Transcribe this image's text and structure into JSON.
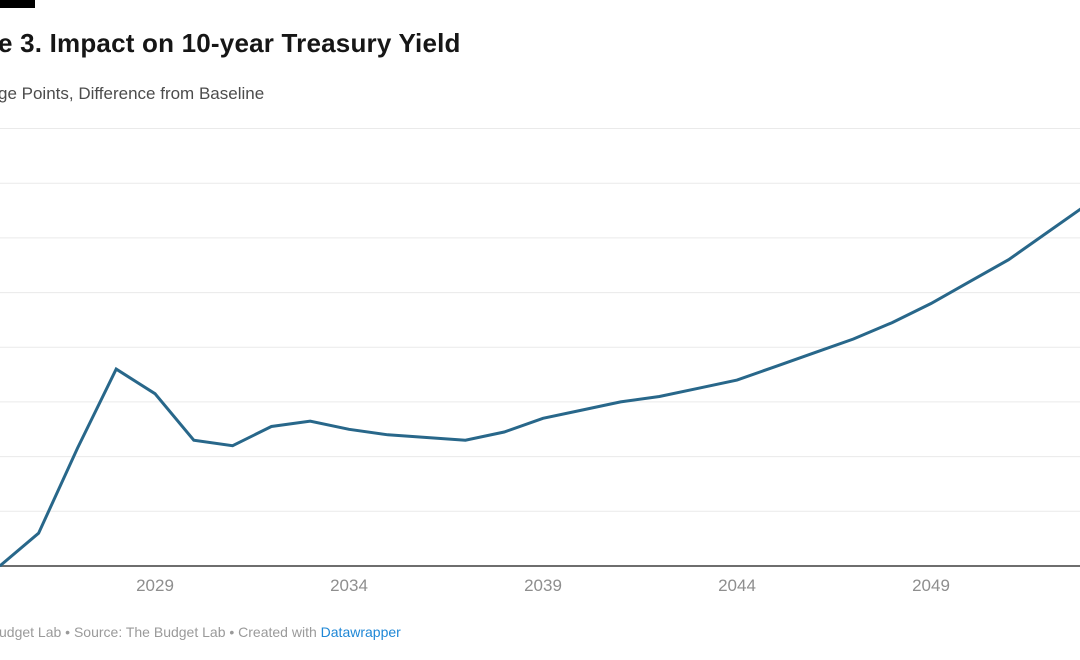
{
  "header": {
    "title": "e 3. Impact on 10-year Treasury Yield",
    "subtitle": "ge Points, Difference from Baseline"
  },
  "footer": {
    "prefix": "udget Lab • Source: The Budget Lab • Created with ",
    "link_label": "Datawrapper"
  },
  "colors": {
    "line": "#28678a",
    "grid": "#eaeaea",
    "axis": "#6e6e6e",
    "tick_label": "#8e8e8e",
    "footer_link": "#1e87d6"
  },
  "chart_data": {
    "type": "line",
    "title": "e 3. Impact on 10-year Treasury Yield",
    "subtitle": "ge Points, Difference from Baseline",
    "xlabel": "",
    "ylabel": "",
    "x": [
      2025,
      2026,
      2027,
      2028,
      2029,
      2030,
      2031,
      2032,
      2033,
      2034,
      2035,
      2036,
      2037,
      2038,
      2039,
      2040,
      2041,
      2042,
      2043,
      2044,
      2045,
      2046,
      2047,
      2048,
      2049,
      2050,
      2051,
      2052,
      2053
    ],
    "values": [
      0.0,
      0.06,
      0.215,
      0.36,
      0.315,
      0.23,
      0.22,
      0.255,
      0.265,
      0.25,
      0.24,
      0.235,
      0.23,
      0.245,
      0.27,
      0.285,
      0.3,
      0.31,
      0.325,
      0.34,
      0.365,
      0.39,
      0.415,
      0.445,
      0.48,
      0.52,
      0.56,
      0.61,
      0.66
    ],
    "xticks": [
      "2029",
      "2034",
      "2039",
      "2044",
      "2049"
    ],
    "ylim": [
      0,
      0.8
    ],
    "grid_step": 0.1,
    "grid": true,
    "legend": "none",
    "note": "y-axis tick labels cropped out of view; baseline value 0 at x-axis"
  }
}
